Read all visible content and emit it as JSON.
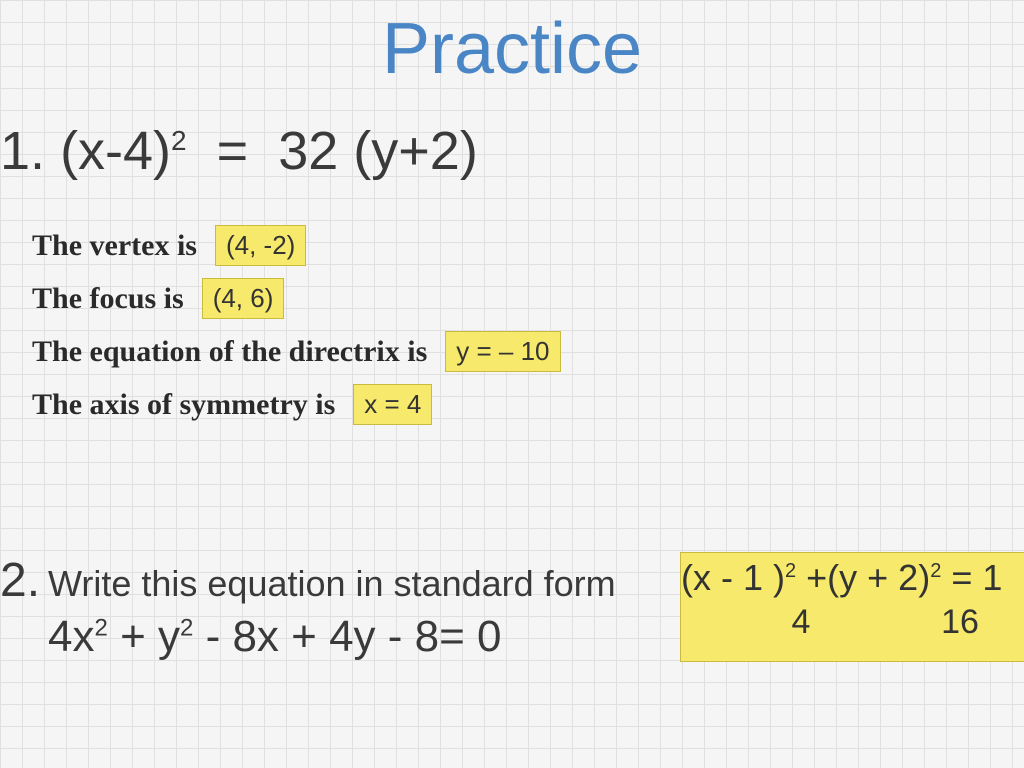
{
  "title": "Practice",
  "colors": {
    "title": "#4a86c5",
    "body_text": "#3a3a3a",
    "highlight_bg": "#f6e96b",
    "highlight_border": "#c8bb3d",
    "grid": "#e0e0e0",
    "bg": "#f5f5f5"
  },
  "typography": {
    "title_fontsize": 72,
    "problem_fontsize": 54,
    "label_fontsize": 30,
    "answer_fontsize": 26,
    "label_family": "Times New Roman",
    "body_family": "Arial"
  },
  "problem1": {
    "number": "1.",
    "lhs1": "(x-4)",
    "exp": "2",
    "eq": "=",
    "rhs": "32 (y+2)",
    "rows": [
      {
        "label": "The vertex is",
        "answer": "(4, -2)"
      },
      {
        "label": "The focus is",
        "answer": "(4, 6)"
      },
      {
        "label": "The equation of the directrix is",
        "answer": "y = – 10"
      },
      {
        "label": "The axis of symmetry is",
        "answer": "x = 4"
      }
    ]
  },
  "problem2": {
    "number": "2.",
    "prompt": "Write this equation in standard form",
    "equation": {
      "a": "4x",
      "a_exp": "2",
      "plus1": " + y",
      "b_exp": "2",
      "rest": " - 8x + 4y - 8= 0"
    },
    "answer": {
      "line": "(x - 1 )² +(y + 2)² = 1",
      "p1": "(x - 1 )",
      "e1": "2",
      "mid": " +(y + 2)",
      "e2": "2",
      "tail": " = 1",
      "den1": "4",
      "den2": "16"
    }
  }
}
